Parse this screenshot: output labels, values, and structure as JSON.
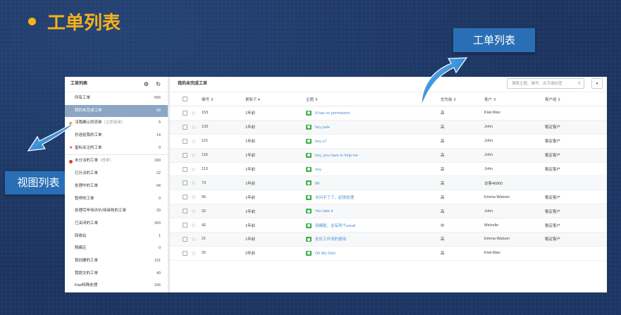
{
  "slide": {
    "title": "工单列表",
    "callout_top": "工单列表",
    "callout_left": "视图列表",
    "accent_color": "#f5b21b",
    "callout_color": "#2a6fb5"
  },
  "sidebar": {
    "title": "工单列表",
    "icons": [
      "gear-icon",
      "refresh-icon"
    ],
    "items": [
      {
        "label": "所有工单",
        "sub": "",
        "count": "666",
        "marker": "none",
        "active": false
      },
      {
        "label": "我的未完成工单",
        "sub": "",
        "count": "59",
        "marker": "none",
        "active": true
      },
      {
        "label": "待我确认的流单",
        "sub": "（立即接单）",
        "count": "5",
        "marker": "orange-dot",
        "active": false
      },
      {
        "label": "抄送给我的工单",
        "sub": "",
        "count": "14",
        "marker": "none",
        "active": false
      },
      {
        "label": "星标关注的工单",
        "sub": "",
        "count": "0",
        "marker": "red-star",
        "active": false
      },
      {
        "label": "未分派的工单",
        "sub": "（抢单）",
        "count": "180",
        "marker": "red-dot",
        "active": false
      },
      {
        "label": "已分派的工单",
        "sub": "",
        "count": "22",
        "marker": "none",
        "active": false
      },
      {
        "label": "处理中的工单",
        "sub": "",
        "count": "94",
        "marker": "none",
        "active": false
      },
      {
        "label": "暂停的工单",
        "sub": "",
        "count": "0",
        "marker": "none",
        "active": false
      },
      {
        "label": "处理完毕待评价/待审核的工单",
        "sub": "",
        "count": "29",
        "marker": "none",
        "active": false
      },
      {
        "label": "已关闭的工单",
        "sub": "",
        "count": "343",
        "marker": "none",
        "active": false
      },
      {
        "label": "回收站",
        "sub": "",
        "count": "1",
        "marker": "none",
        "active": false
      },
      {
        "label": "隔离区",
        "sub": "",
        "count": "0",
        "marker": "none",
        "active": false
      },
      {
        "label": "我创建的工单",
        "sub": "",
        "count": "101",
        "marker": "none",
        "active": false
      },
      {
        "label": "我提交的工单",
        "sub": "",
        "count": "40",
        "marker": "none",
        "active": false
      },
      {
        "label": "Kiwi特殊处理",
        "sub": "",
        "count": "166",
        "marker": "none",
        "active": false
      }
    ]
  },
  "main": {
    "title": "我的未完成工单",
    "search_placeholder": "搜索主题、编号、名字或标签",
    "columns": {
      "id": "编号 ⇕",
      "updated": "更新于 ▾",
      "subject": "主题 ⇕",
      "priority": "优先级 ⇕",
      "customer": "客户 ⇕",
      "group": "客户组 ⇕"
    },
    "rows": [
      {
        "id": "153",
        "updated": "1年前",
        "subject": "A has no permission",
        "priority": "高",
        "customer": "Kiwi.Wan",
        "group": ""
      },
      {
        "id": "133",
        "updated": "1年前",
        "subject": "hey jude",
        "priority": "高",
        "customer": "John",
        "group": "稳定客户"
      },
      {
        "id": "121",
        "updated": "1年前",
        "subject": "hey u7",
        "priority": "高",
        "customer": "John",
        "group": "稳定客户"
      },
      {
        "id": "116",
        "updated": "1年前",
        "subject": "hey, you have to help me",
        "priority": "高",
        "customer": "John",
        "group": "稳定客户"
      },
      {
        "id": "113",
        "updated": "1年前",
        "subject": "hey",
        "priority": "高",
        "customer": "John",
        "group": "稳定客户"
      },
      {
        "id": "73",
        "updated": "1年前",
        "subject": "gg",
        "priority": "高",
        "customer": "访客46860",
        "group": ""
      },
      {
        "id": "56",
        "updated": "1年前",
        "subject": "访问不了了，赶快处理",
        "priority": "高",
        "customer": "Emma Watson",
        "group": "稳定客户"
      },
      {
        "id": "32",
        "updated": "1年前",
        "subject": "You take it",
        "priority": "高",
        "customer": "John",
        "group": "稳定客户"
      },
      {
        "id": "42",
        "updated": "1年前",
        "subject": "用模版，含有两个email",
        "priority": "中",
        "customer": "Michelle",
        "group": "稳定客户"
      },
      {
        "id": "21",
        "updated": "1年前",
        "subject": "优化工作流的使用",
        "priority": "高",
        "customer": "Emma Watson",
        "group": "稳定客户"
      },
      {
        "id": "25",
        "updated": "2年前",
        "subject": "Oh My Own",
        "priority": "高",
        "customer": "Kiwi.Wan",
        "group": ""
      }
    ]
  }
}
